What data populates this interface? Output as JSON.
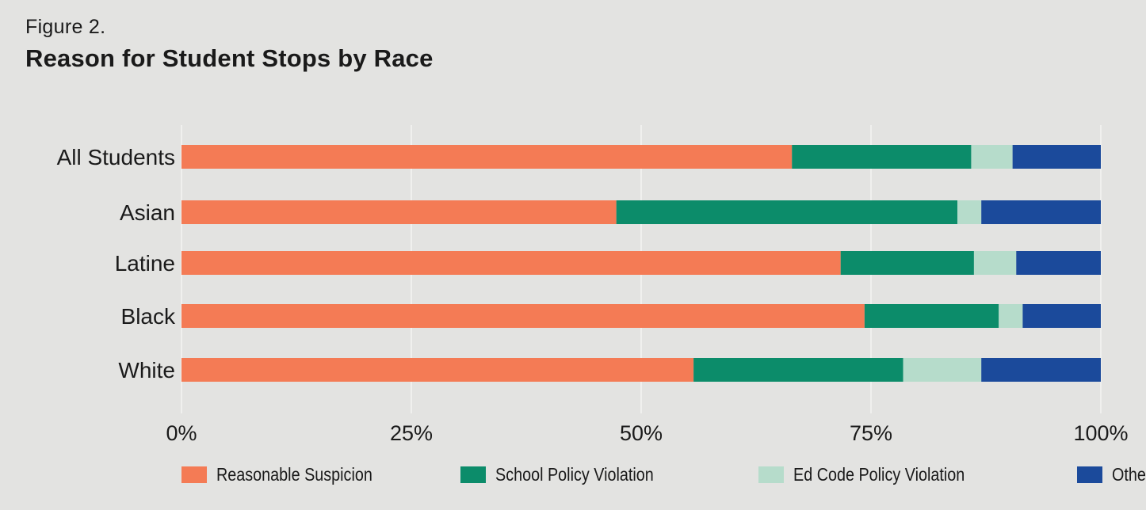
{
  "figure_label": "Figure 2.",
  "title": "Reason for Student Stops by Race",
  "colors": {
    "background": "#e3e3e1",
    "grid": "#f5f5f3",
    "text": "#1a1a1a"
  },
  "chart_data": {
    "type": "bar",
    "orientation": "horizontal",
    "stacked": true,
    "categories": [
      "All Students",
      "Asian",
      "Latine",
      "Black",
      "White"
    ],
    "series": [
      {
        "name": "Reasonable Suspicion",
        "color": "#f47b55",
        "values": [
          66.4,
          47.3,
          71.7,
          74.3,
          55.7
        ]
      },
      {
        "name": "School Policy Violation",
        "color": "#0c8c6a",
        "values": [
          19.5,
          37.1,
          14.5,
          14.6,
          22.8
        ]
      },
      {
        "name": "Ed Code Policy Violation",
        "color": "#b6dccb",
        "values": [
          4.5,
          2.6,
          4.6,
          2.6,
          8.5
        ]
      },
      {
        "name": "Other",
        "color": "#1b4a9b",
        "values": [
          9.6,
          13.0,
          9.2,
          8.5,
          13.0
        ]
      }
    ],
    "xlim": [
      0,
      100
    ],
    "xticks": [
      0,
      25,
      50,
      75,
      100
    ],
    "xtick_labels": [
      "0%",
      "25%",
      "50%",
      "75%",
      "100%"
    ],
    "grid": "vertical",
    "legend_position": "bottom"
  }
}
